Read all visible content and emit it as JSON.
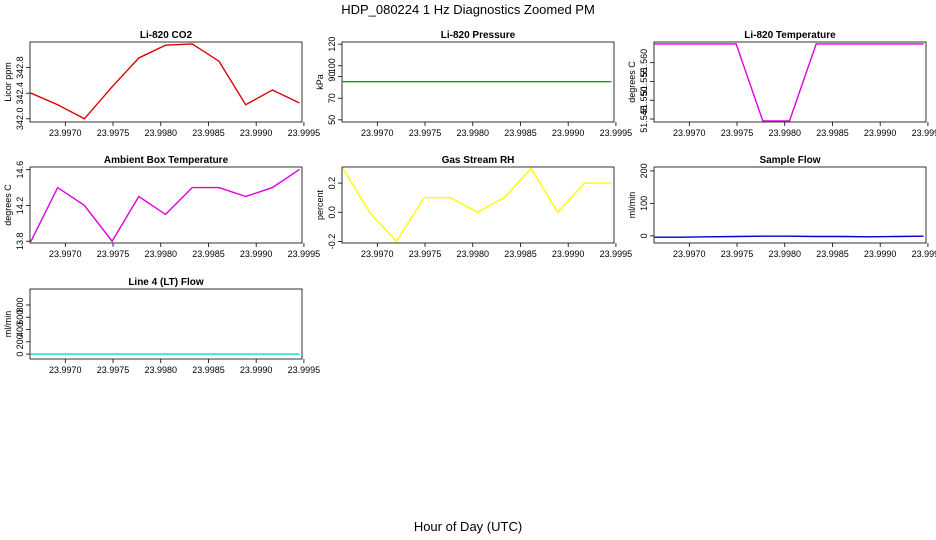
{
  "figure": {
    "title": "HDP_080224  1 Hz Diagnostics Zoomed PM",
    "xlabel": "Hour of Day (UTC)"
  },
  "chart_data": [
    {
      "type": "line",
      "title": "Li-820 CO2",
      "ylabel": "Licor ppm",
      "color": "#dd0000",
      "xlim": [
        23.99663,
        23.99948
      ],
      "ylim": [
        341.95,
        343.2
      ],
      "xticks": [
        23.997,
        23.9975,
        23.998,
        23.9985,
        23.999,
        23.9995
      ],
      "xtick_labels": [
        "23.9970",
        "23.9975",
        "23.9980",
        "23.9985",
        "23.9990",
        "23.9995"
      ],
      "yticks": [
        342.0,
        342.4,
        342.8
      ],
      "ytick_labels": [
        "342.0",
        "342.4",
        "342.8"
      ],
      "x": [
        23.99664,
        23.99692,
        23.9972,
        23.99749,
        23.99777,
        23.99805,
        23.99833,
        23.99861,
        23.99889,
        23.99917,
        23.99945
      ],
      "y": [
        342.4,
        342.22,
        342.0,
        342.5,
        342.95,
        343.15,
        343.17,
        342.9,
        342.22,
        342.45,
        342.25
      ]
    },
    {
      "type": "line",
      "title": "Li-820 Pressure",
      "ylabel": "kPa",
      "color": "#00aa00",
      "xlim": [
        23.99663,
        23.99948
      ],
      "ylim": [
        48,
        122
      ],
      "xticks": [
        23.997,
        23.9975,
        23.998,
        23.9985,
        23.999,
        23.9995
      ],
      "xtick_labels": [
        "23.9970",
        "23.9975",
        "23.9980",
        "23.9985",
        "23.9990",
        "23.9995"
      ],
      "yticks": [
        50,
        70,
        90,
        100,
        120
      ],
      "ytick_labels": [
        "50",
        "70",
        "90",
        "100",
        "120"
      ],
      "x": [
        23.99664,
        23.99945
      ],
      "y": [
        85.3,
        85.3
      ]
    },
    {
      "type": "line",
      "title": "Li-820 Temperature",
      "ylabel": "degrees C",
      "color": "#dd00dd",
      "xlim": [
        23.99663,
        23.99948
      ],
      "ylim": [
        51.5442,
        51.5655
      ],
      "xticks": [
        23.997,
        23.9975,
        23.998,
        23.9985,
        23.999,
        23.9995
      ],
      "xtick_labels": [
        "23.9970",
        "23.9975",
        "23.9980",
        "23.9985",
        "23.9990",
        "23.9995"
      ],
      "yticks": [
        51.545,
        51.55,
        51.555,
        51.56
      ],
      "ytick_labels": [
        "51.545",
        "51.550",
        "51.555",
        "51.560"
      ],
      "x": [
        23.99664,
        23.99749,
        23.99777,
        23.99805,
        23.99833,
        23.99945
      ],
      "y": [
        51.565,
        51.565,
        51.5445,
        51.5445,
        51.565,
        51.565
      ]
    },
    {
      "type": "line",
      "title": "Ambient Box Temperature",
      "ylabel": "degrees C",
      "color": "#dd00dd",
      "xlim": [
        23.99663,
        23.99948
      ],
      "ylim": [
        13.78,
        14.63
      ],
      "xticks": [
        23.997,
        23.9975,
        23.998,
        23.9985,
        23.999,
        23.9995
      ],
      "xtick_labels": [
        "23.9970",
        "23.9975",
        "23.9980",
        "23.9985",
        "23.9990",
        "23.9995"
      ],
      "yticks": [
        13.8,
        14.2,
        14.6
      ],
      "ytick_labels": [
        "13.8",
        "14.2",
        "14.6"
      ],
      "x": [
        23.99664,
        23.99692,
        23.9972,
        23.99749,
        23.99777,
        23.99805,
        23.99833,
        23.99861,
        23.99889,
        23.99917,
        23.99945
      ],
      "y": [
        13.8,
        14.4,
        14.2,
        13.8,
        14.3,
        14.1,
        14.4,
        14.4,
        14.3,
        14.4,
        14.6
      ]
    },
    {
      "type": "line",
      "title": "Gas Stream RH",
      "ylabel": "percent",
      "color": "#ffff00",
      "xlim": [
        23.99663,
        23.99948
      ],
      "ylim": [
        -0.21,
        0.31
      ],
      "xticks": [
        23.997,
        23.9975,
        23.998,
        23.9985,
        23.999,
        23.9995
      ],
      "xtick_labels": [
        "23.9970",
        "23.9975",
        "23.9980",
        "23.9985",
        "23.9990",
        "23.9995"
      ],
      "yticks": [
        -0.2,
        0.0,
        0.2
      ],
      "ytick_labels": [
        "-0.2",
        "0.0",
        "0.2"
      ],
      "x": [
        23.99664,
        23.99692,
        23.9972,
        23.99749,
        23.99777,
        23.99805,
        23.99833,
        23.99861,
        23.99889,
        23.99917,
        23.99945
      ],
      "y": [
        0.3,
        0.0,
        -0.2,
        0.1,
        0.1,
        0.0,
        0.1,
        0.3,
        0.0,
        0.2,
        0.2
      ]
    },
    {
      "type": "line",
      "title": "Sample Flow",
      "ylabel": "ml/min",
      "color": "#0000cc",
      "xlim": [
        23.99663,
        23.99948
      ],
      "ylim": [
        -22,
        212
      ],
      "xticks": [
        23.997,
        23.9975,
        23.998,
        23.9985,
        23.999,
        23.9995
      ],
      "xtick_labels": [
        "23.9970",
        "23.9975",
        "23.9980",
        "23.9985",
        "23.9990",
        "23.9995"
      ],
      "yticks": [
        0,
        100,
        200
      ],
      "ytick_labels": [
        "0",
        "100",
        "200"
      ],
      "x": [
        23.99664,
        23.99692,
        23.9972,
        23.99749,
        23.99777,
        23.99805,
        23.99833,
        23.99861,
        23.99889,
        23.99917,
        23.99945
      ],
      "y": [
        -4,
        -4,
        -3,
        -2,
        -1,
        -1,
        -2,
        -2,
        -3,
        -2,
        -1
      ]
    },
    {
      "type": "line",
      "title": "Line 4 (LT) Flow",
      "ylabel": "ml/min",
      "color": "#00dddd",
      "xlim": [
        23.99663,
        23.99948
      ],
      "ylim": [
        -80,
        1060
      ],
      "xticks": [
        23.997,
        23.9975,
        23.998,
        23.9985,
        23.999,
        23.9995
      ],
      "xtick_labels": [
        "23.9970",
        "23.9975",
        "23.9980",
        "23.9985",
        "23.9990",
        "23.9995"
      ],
      "yticks": [
        0,
        200,
        400,
        600,
        800
      ],
      "ytick_labels": [
        "0",
        "200",
        "400",
        "600",
        "800"
      ],
      "x": [
        23.99664,
        23.99945
      ],
      "y": [
        0,
        0
      ]
    }
  ]
}
